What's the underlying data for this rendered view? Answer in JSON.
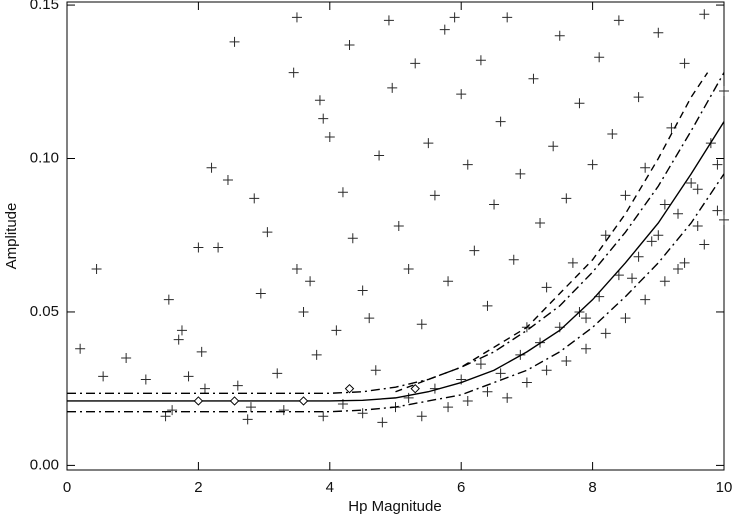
{
  "chart_data": {
    "type": "scatter",
    "x_label": "Hp Magnitude",
    "y_label": "Amplitude",
    "xlim": [
      0,
      10
    ],
    "ylim": [
      -0.0015,
      0.151
    ],
    "xticks": [
      0,
      2,
      4,
      6,
      8,
      10
    ],
    "yticks": [
      {
        "value": 0,
        "label": "0.00"
      },
      {
        "value": 0.05,
        "label": "0.05"
      },
      {
        "value": 0.1,
        "label": "0.10"
      },
      {
        "value": 0.15,
        "label": "0.15"
      }
    ],
    "series": [
      {
        "type": "scatter",
        "marker": "plus",
        "color": "#2a2a2a",
        "x": [
          0.2,
          0.45,
          0.55,
          0.9,
          1.2,
          1.5,
          1.55,
          1.7,
          1.75,
          1.85,
          2.0,
          2.05,
          2.1,
          2.2,
          2.3,
          2.45,
          2.55,
          2.6,
          2.75,
          2.85,
          2.95,
          3.05,
          3.2,
          3.45,
          3.5,
          3.5,
          3.6,
          3.7,
          3.8,
          3.85,
          3.9,
          4.0,
          4.1,
          4.2,
          4.3,
          4.35,
          4.5,
          4.6,
          4.7,
          4.75,
          4.9,
          4.95,
          5.05,
          5.2,
          5.3,
          5.4,
          5.5,
          5.6,
          5.75,
          5.8,
          5.9,
          6.0,
          6.1,
          6.2,
          6.3,
          6.4,
          6.5,
          6.6,
          6.7,
          6.8,
          6.9,
          7.0,
          7.1,
          7.2,
          7.3,
          7.4,
          7.5,
          7.6,
          7.7,
          7.8,
          7.9,
          8.0,
          8.1,
          8.2,
          8.3,
          8.4,
          8.5,
          8.6,
          8.7,
          8.8,
          8.9,
          9.0,
          9.1,
          9.2,
          9.3,
          9.4,
          9.5,
          9.6,
          9.7,
          9.8,
          9.9,
          10.0,
          4.5,
          4.8,
          5.0,
          5.2,
          5.4,
          5.6,
          5.8,
          6.0,
          6.1,
          6.3,
          6.4,
          6.6,
          6.7,
          6.9,
          7.0,
          7.2,
          7.3,
          7.5,
          7.6,
          7.8,
          7.9,
          8.1,
          8.2,
          8.4,
          8.5,
          8.7,
          8.8,
          9.0,
          9.1,
          9.3,
          9.4,
          9.6,
          9.7,
          9.9,
          10.0,
          2.8,
          3.3,
          3.9,
          4.2,
          1.6
        ],
        "values": [
          0.038,
          0.064,
          0.029,
          0.035,
          0.028,
          0.016,
          0.054,
          0.041,
          0.044,
          0.029,
          0.071,
          0.037,
          0.025,
          0.097,
          0.071,
          0.093,
          0.138,
          0.026,
          0.015,
          0.087,
          0.056,
          0.076,
          0.03,
          0.128,
          0.146,
          0.064,
          0.05,
          0.06,
          0.036,
          0.119,
          0.113,
          0.107,
          0.044,
          0.089,
          0.137,
          0.074,
          0.057,
          0.048,
          0.031,
          0.101,
          0.145,
          0.123,
          0.078,
          0.064,
          0.131,
          0.046,
          0.105,
          0.088,
          0.142,
          0.06,
          0.146,
          0.121,
          0.098,
          0.07,
          0.132,
          0.052,
          0.085,
          0.112,
          0.146,
          0.067,
          0.095,
          0.045,
          0.126,
          0.079,
          0.058,
          0.104,
          0.14,
          0.087,
          0.066,
          0.118,
          0.048,
          0.098,
          0.133,
          0.075,
          0.108,
          0.145,
          0.088,
          0.061,
          0.12,
          0.097,
          0.073,
          0.141,
          0.085,
          0.11,
          0.064,
          0.131,
          0.092,
          0.078,
          0.147,
          0.105,
          0.083,
          0.122,
          0.017,
          0.014,
          0.019,
          0.022,
          0.016,
          0.025,
          0.019,
          0.028,
          0.021,
          0.033,
          0.024,
          0.03,
          0.022,
          0.036,
          0.027,
          0.04,
          0.031,
          0.045,
          0.034,
          0.05,
          0.038,
          0.055,
          0.043,
          0.062,
          0.048,
          0.068,
          0.054,
          0.075,
          0.06,
          0.082,
          0.066,
          0.09,
          0.072,
          0.098,
          0.08,
          0.019,
          0.018,
          0.016,
          0.02,
          0.018
        ]
      },
      {
        "type": "line",
        "style": "solid",
        "color": "#000000",
        "x": [
          0,
          0.5,
          1,
          1.5,
          2,
          2.5,
          3,
          3.5,
          4,
          4.5,
          5,
          5.5,
          6,
          6.5,
          7,
          7.5,
          8,
          8.5,
          9,
          9.5,
          10
        ],
        "values": [
          0.021,
          0.021,
          0.021,
          0.021,
          0.021,
          0.021,
          0.021,
          0.021,
          0.021,
          0.0212,
          0.022,
          0.024,
          0.027,
          0.031,
          0.037,
          0.044,
          0.054,
          0.066,
          0.079,
          0.095,
          0.112
        ]
      },
      {
        "type": "line",
        "style": "dash-dot",
        "color": "#000000",
        "x": [
          0,
          0.5,
          1,
          1.5,
          2,
          2.5,
          3,
          3.5,
          4,
          4.5,
          5,
          5.5,
          6,
          6.5,
          7,
          7.5,
          8,
          8.5,
          9,
          9.5,
          10
        ],
        "values": [
          0.0235,
          0.0235,
          0.0235,
          0.0235,
          0.0235,
          0.0235,
          0.0235,
          0.0235,
          0.0235,
          0.024,
          0.0255,
          0.028,
          0.032,
          0.037,
          0.044,
          0.052,
          0.063,
          0.076,
          0.091,
          0.109,
          0.128
        ]
      },
      {
        "type": "line",
        "style": "dash-dot",
        "color": "#000000",
        "x": [
          0,
          0.5,
          1,
          1.5,
          2,
          2.5,
          3,
          3.5,
          4,
          4.5,
          5,
          5.5,
          6,
          6.5,
          7,
          7.5,
          8,
          8.5,
          9,
          9.5,
          10
        ],
        "values": [
          0.0175,
          0.0175,
          0.0175,
          0.0175,
          0.0175,
          0.0175,
          0.0175,
          0.0175,
          0.0175,
          0.018,
          0.019,
          0.021,
          0.023,
          0.027,
          0.031,
          0.037,
          0.045,
          0.055,
          0.066,
          0.079,
          0.095
        ]
      },
      {
        "type": "line",
        "style": "dashed",
        "color": "#000000",
        "x": [
          5,
          6,
          7,
          8,
          8.5,
          9,
          9.5,
          9.75
        ],
        "values": [
          0.024,
          0.032,
          0.045,
          0.067,
          0.082,
          0.1,
          0.12,
          0.128
        ]
      },
      {
        "type": "scatter",
        "marker": "diamond",
        "color": "#000000",
        "x": [
          2.0,
          2.55,
          3.6,
          4.3,
          5.3
        ],
        "values": [
          0.021,
          0.021,
          0.021,
          0.025,
          0.025
        ]
      }
    ]
  }
}
